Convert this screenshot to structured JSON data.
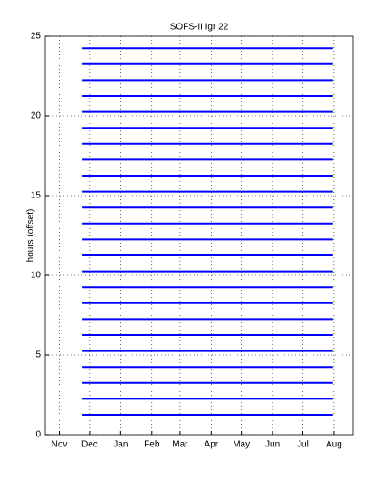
{
  "chart_data": {
    "type": "line",
    "title": "SOFS-II Igr 22",
    "y_label": "hours (offset)",
    "x": [
      23,
      272
    ],
    "color": "#0000ff",
    "grid": true,
    "xlim": [
      -14,
      292
    ],
    "xticks": [
      {
        "value": 0,
        "label": "Nov"
      },
      {
        "value": 30,
        "label": "Dec"
      },
      {
        "value": 61,
        "label": "Jan"
      },
      {
        "value": 92,
        "label": "Feb"
      },
      {
        "value": 120,
        "label": "Mar"
      },
      {
        "value": 151,
        "label": "Apr"
      },
      {
        "value": 181,
        "label": "May"
      },
      {
        "value": 212,
        "label": "Jun"
      },
      {
        "value": 242,
        "label": "Jul"
      },
      {
        "value": 273,
        "label": "Aug"
      }
    ],
    "ylim": [
      0,
      25
    ],
    "yticks": [
      0,
      5,
      10,
      15,
      20,
      25
    ],
    "series": [
      {
        "values": [
          1.25,
          1.25
        ]
      },
      {
        "values": [
          2.25,
          2.25
        ]
      },
      {
        "values": [
          3.25,
          3.25
        ]
      },
      {
        "values": [
          4.25,
          4.25
        ]
      },
      {
        "values": [
          5.25,
          5.25
        ]
      },
      {
        "values": [
          6.25,
          6.25
        ]
      },
      {
        "values": [
          7.25,
          7.25
        ]
      },
      {
        "values": [
          8.25,
          8.25
        ]
      },
      {
        "values": [
          9.25,
          9.25
        ]
      },
      {
        "values": [
          10.25,
          10.25
        ]
      },
      {
        "values": [
          11.25,
          11.25
        ]
      },
      {
        "values": [
          12.25,
          12.25
        ]
      },
      {
        "values": [
          13.25,
          13.25
        ]
      },
      {
        "values": [
          14.25,
          14.25
        ]
      },
      {
        "values": [
          15.25,
          15.25
        ]
      },
      {
        "values": [
          16.25,
          16.25
        ]
      },
      {
        "values": [
          17.25,
          17.25
        ]
      },
      {
        "values": [
          18.25,
          18.25
        ]
      },
      {
        "values": [
          19.25,
          19.25
        ]
      },
      {
        "values": [
          20.25,
          20.25
        ]
      },
      {
        "values": [
          21.25,
          21.25
        ]
      },
      {
        "values": [
          22.25,
          22.25
        ]
      },
      {
        "values": [
          23.25,
          23.25
        ]
      },
      {
        "values": [
          24.25,
          24.25
        ]
      }
    ]
  }
}
